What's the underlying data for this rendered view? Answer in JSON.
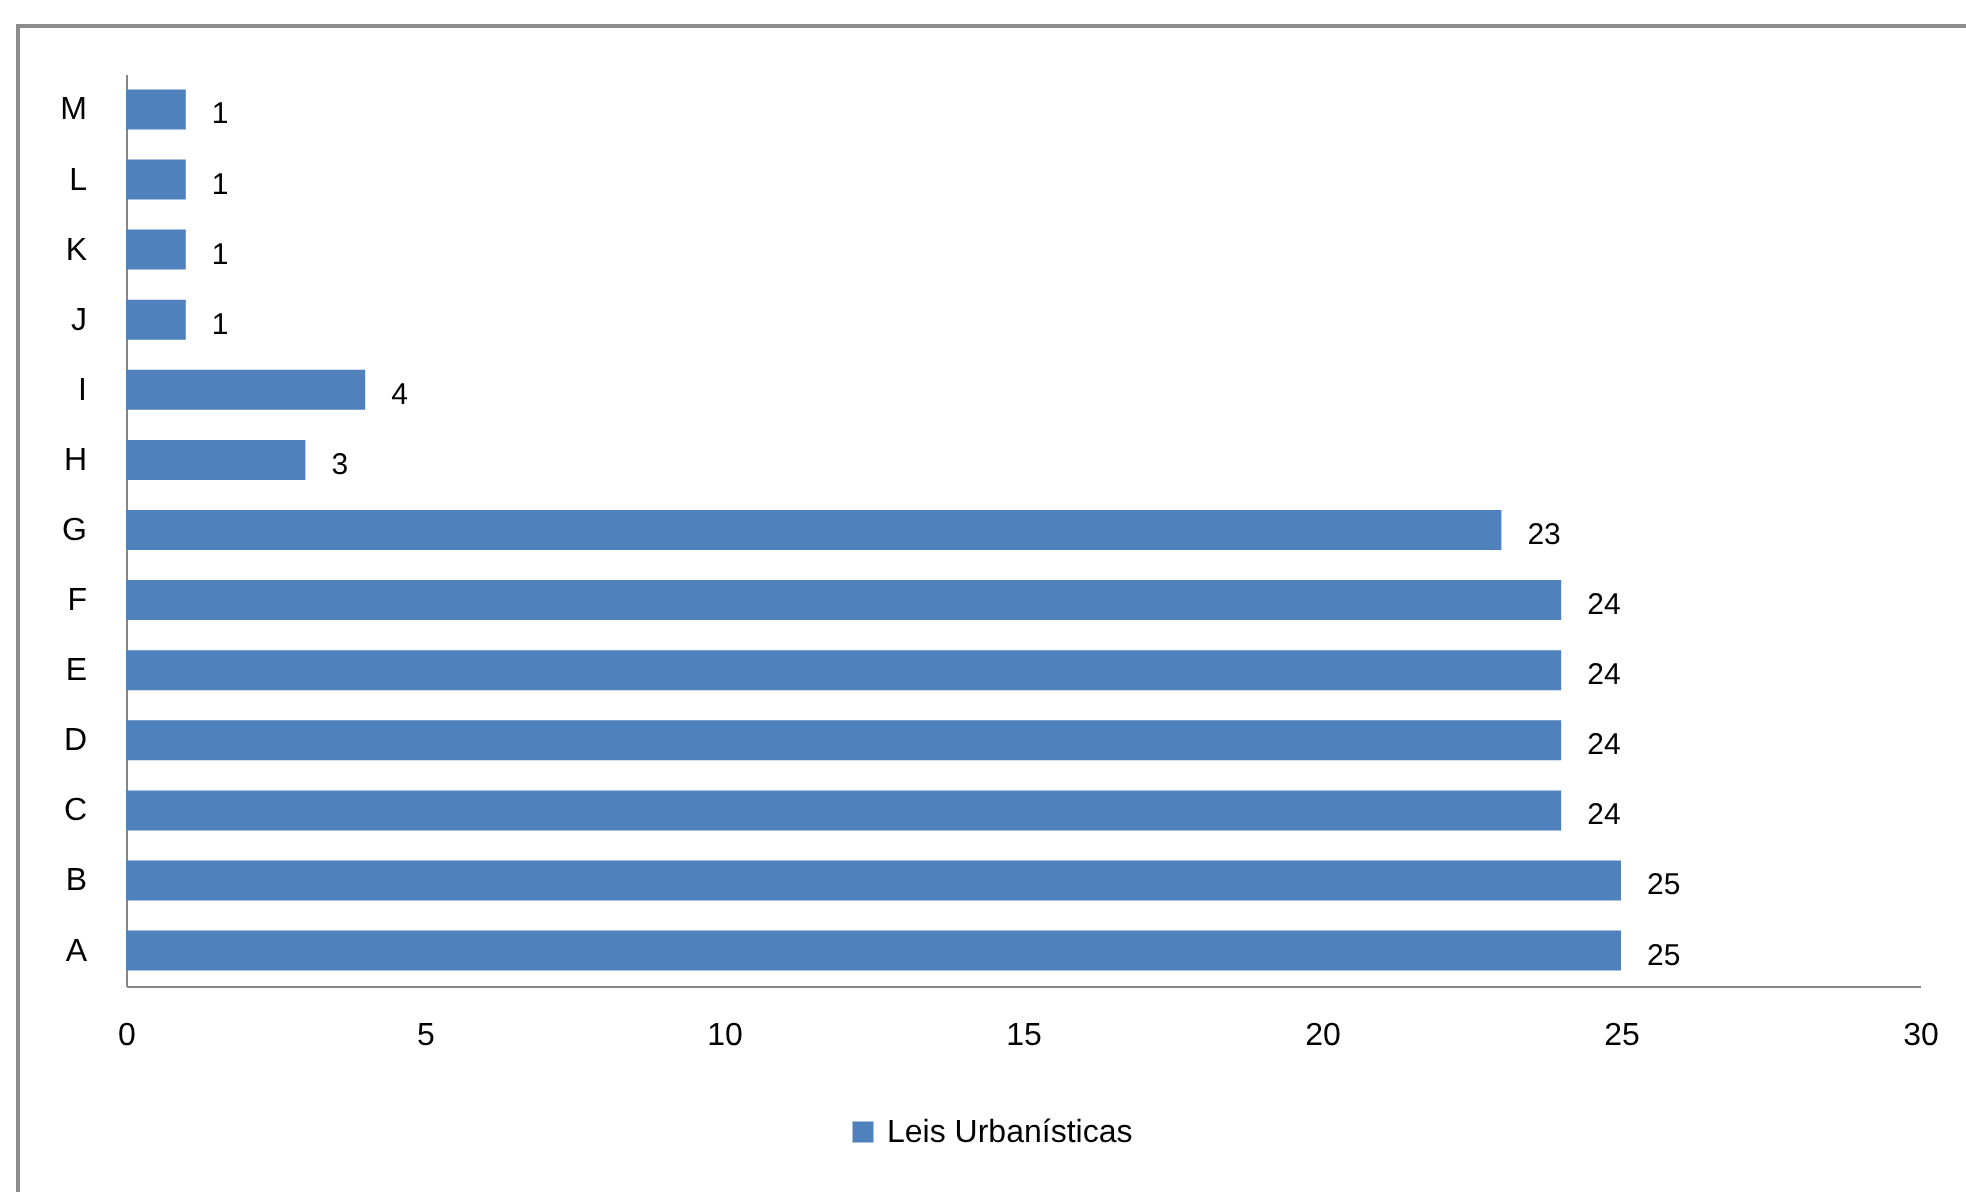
{
  "chart_data": {
    "type": "bar",
    "orientation": "horizontal",
    "categories": [
      "M",
      "L",
      "K",
      "J",
      "I",
      "H",
      "G",
      "F",
      "E",
      "D",
      "C",
      "B",
      "A"
    ],
    "series": [
      {
        "name": "Leis Urbanísticas",
        "color": "#4f81bd",
        "values": [
          1,
          1,
          1,
          1,
          4,
          3,
          23,
          24,
          24,
          24,
          24,
          25,
          25
        ]
      }
    ],
    "xlim": [
      0,
      30
    ],
    "xticks": [
      0,
      5,
      10,
      15,
      20,
      25,
      30
    ],
    "data_labels": true,
    "legend": "bottom"
  }
}
